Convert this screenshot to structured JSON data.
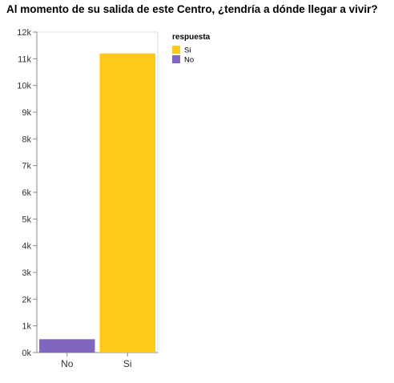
{
  "chart_data": {
    "type": "bar",
    "title": "Al momento de su salida de este Centro, ¿tendría a dónde llegar a vivir?",
    "xlabel": "",
    "ylabel": "",
    "categories": [
      "No",
      "Si"
    ],
    "values": [
      500,
      11200
    ],
    "bar_colors": [
      "#8066c0",
      "#ffc91a"
    ],
    "ylim": [
      0,
      12000
    ],
    "y_ticks": [
      0,
      1000,
      2000,
      3000,
      4000,
      5000,
      6000,
      7000,
      8000,
      9000,
      10000,
      11000,
      12000
    ],
    "y_tick_labels": [
      "0k",
      "1k",
      "2k",
      "3k",
      "4k",
      "5k",
      "6k",
      "7k",
      "8k",
      "9k",
      "10k",
      "11k",
      "12k"
    ],
    "grid": false,
    "legend": {
      "title": "respuesta",
      "position": "right",
      "entries": [
        {
          "label": "Si",
          "color": "#ffc91a"
        },
        {
          "label": "No",
          "color": "#8066c0"
        }
      ]
    }
  }
}
